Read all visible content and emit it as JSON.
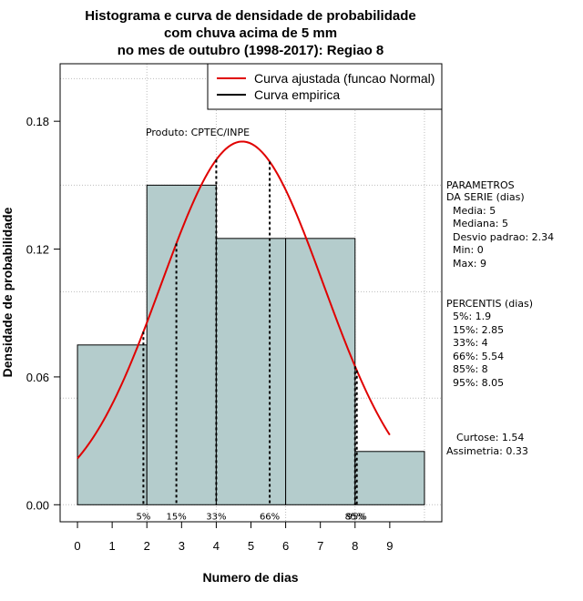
{
  "chart_data": {
    "type": "bar",
    "title": [
      "Histograma e curva de densidade de probabilidade",
      "com chuva acima de 5 mm",
      "no mes de outubro (1998-2017): Regiao 8"
    ],
    "xlabel": "Numero de dias",
    "ylabel": "Densidade de probabilidade",
    "xlim": [
      -0.5,
      10.5
    ],
    "ylim": [
      -0.008,
      0.207
    ],
    "x_ticks": [
      0,
      1,
      2,
      3,
      4,
      5,
      6,
      7,
      8,
      9
    ],
    "y_ticks": [
      0.0,
      0.06,
      0.12,
      0.18
    ],
    "y_tick_labels": [
      "0.00",
      "0.06",
      "0.12",
      "0.18"
    ],
    "bins": [
      {
        "from": 0,
        "to": 2,
        "density": 0.075
      },
      {
        "from": 2,
        "to": 4,
        "density": 0.15
      },
      {
        "from": 4,
        "to": 6,
        "density": 0.125
      },
      {
        "from": 6,
        "to": 8,
        "density": 0.125
      },
      {
        "from": 8,
        "to": 10,
        "density": 0.025
      }
    ],
    "bar_color": "#b4cccc",
    "curve_color": "#e00000",
    "normal_fit": {
      "mean": 4.75,
      "sd": 2.34,
      "x_from": 0,
      "x_to": 9
    },
    "percentile_lines": [
      {
        "label": "5%",
        "x": 1.9
      },
      {
        "label": "15%",
        "x": 2.85
      },
      {
        "label": "33%",
        "x": 4
      },
      {
        "label": "66%",
        "x": 5.54
      },
      {
        "label": "85%",
        "x": 8
      },
      {
        "label": "95%",
        "x": 8.05
      }
    ],
    "legend": {
      "position": "top-right",
      "entries": [
        {
          "label": "Curva ajustada (funcao Normal)",
          "color": "#e00000"
        },
        {
          "label": "Curva empirica",
          "color": "#000000"
        }
      ]
    },
    "annotation": "Produto: CPTEC/INPE",
    "grid": true
  },
  "side_panel": {
    "parametros_title": [
      "PARAMETROS",
      "DA SERIE (dias)"
    ],
    "parametros": [
      "Media: 5",
      "Mediana: 5",
      "Desvio padrao: 2.34",
      "Min: 0",
      "Max: 9"
    ],
    "percentis_title": "PERCENTIS (dias)",
    "percentis": [
      "5%: 1.9",
      "15%: 2.85",
      "33%: 4",
      "66%: 5.54",
      "85%: 8",
      "95%: 8.05"
    ],
    "curtose": "Curtose: 1.54",
    "assimetria": "Assimetria: 0.33"
  }
}
